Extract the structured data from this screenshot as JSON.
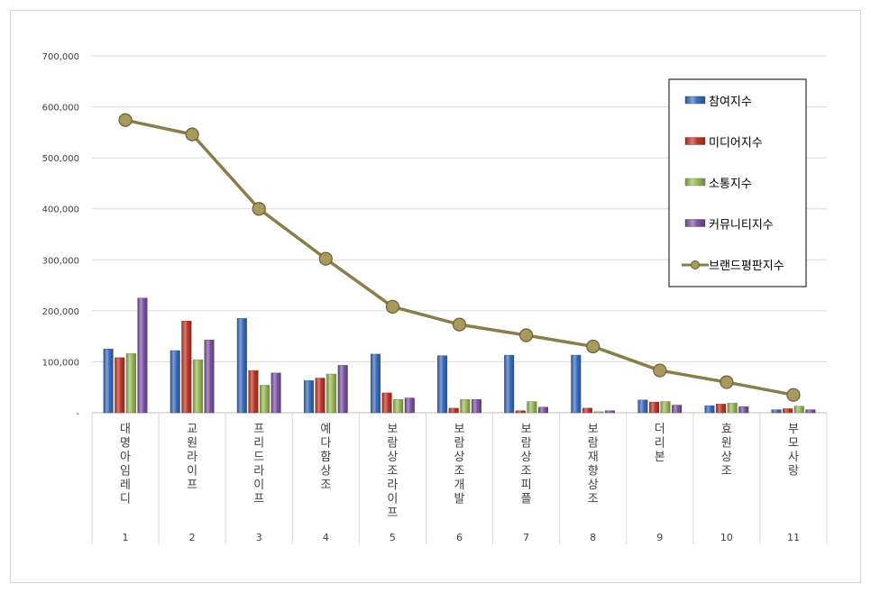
{
  "chart_data": {
    "type": "bar",
    "x": [
      "1",
      "2",
      "3",
      "4",
      "5",
      "6",
      "7",
      "8",
      "9",
      "10",
      "11"
    ],
    "categories": [
      "대명아임레디",
      "교원라이프",
      "프리드라이프",
      "예다함상조",
      "보람상조라이프",
      "보람상조개발",
      "보람상조피플",
      "보람재향상조",
      "더리본",
      "효원상조",
      "부모사랑"
    ],
    "ylim": [
      0,
      700000
    ],
    "yticks": [
      0,
      100000,
      200000,
      300000,
      400000,
      500000,
      600000,
      700000
    ],
    "ytick_labels": [
      "-",
      "100,000",
      "200,000",
      "300,000",
      "400,000",
      "500,000",
      "600,000",
      "700,000"
    ],
    "grid": true,
    "legend_position": "right",
    "series": [
      {
        "name": "참여지수",
        "type": "bar",
        "color": "#3c6fc0",
        "values": [
          125000,
          122000,
          185000,
          63000,
          115000,
          112000,
          113000,
          113000,
          25000,
          14000,
          6000
        ]
      },
      {
        "name": "미디어지수",
        "type": "bar",
        "color": "#c0392b",
        "values": [
          108000,
          180000,
          83000,
          68000,
          39000,
          9000,
          4000,
          9000,
          21000,
          17000,
          8000
        ]
      },
      {
        "name": "소통지수",
        "type": "bar",
        "color": "#9bbb59",
        "values": [
          116000,
          104000,
          54000,
          76000,
          26000,
          26000,
          22000,
          2000,
          22000,
          19000,
          13000
        ]
      },
      {
        "name": "커뮤니티지수",
        "type": "bar",
        "color": "#7f56a8",
        "values": [
          225000,
          143000,
          78000,
          93000,
          29000,
          26000,
          11000,
          4000,
          15000,
          12000,
          6000
        ]
      },
      {
        "name": "브랜드평판지수",
        "type": "line",
        "color": "#8b7d4a",
        "values": [
          574000,
          546000,
          400000,
          302000,
          208000,
          173000,
          152000,
          130000,
          83000,
          60000,
          35000
        ]
      }
    ]
  }
}
